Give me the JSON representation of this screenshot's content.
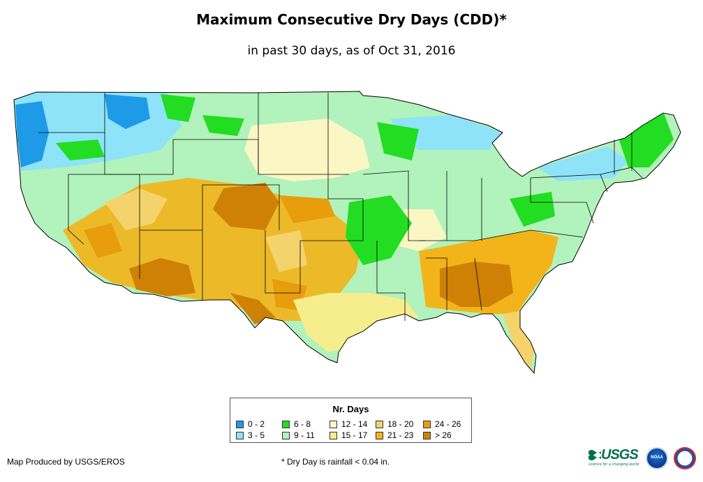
{
  "header": {
    "title": "Maximum Consecutive Dry Days (CDD)*",
    "subtitle": "in past 30 days, as of Oct 31, 2016"
  },
  "legend": {
    "title": "Nr. Days",
    "classes": [
      {
        "label": "0 - 2",
        "color": "#1e9be6"
      },
      {
        "label": "3 - 5",
        "color": "#8ee3f8"
      },
      {
        "label": "6 - 8",
        "color": "#22dd22"
      },
      {
        "label": "9 - 11",
        "color": "#b2f2bc"
      },
      {
        "label": "12 - 14",
        "color": "#fbf7c4"
      },
      {
        "label": "15 - 17",
        "color": "#f6ee8c"
      },
      {
        "label": "18 - 20",
        "color": "#f4d36c"
      },
      {
        "label": "21 - 23",
        "color": "#f2b418"
      },
      {
        "label": "24 - 26",
        "color": "#e89d0d"
      },
      {
        "label": "> 26",
        "color": "#cf8106"
      }
    ]
  },
  "footer": {
    "credit": "Map Produced by USGS/EROS",
    "note": "* Dry Day is rainfall < 0.04 in.",
    "usgs_logo_text": "USGS",
    "usgs_tagline": "science for a changing world",
    "noaa_logo_text": "NOAA"
  }
}
